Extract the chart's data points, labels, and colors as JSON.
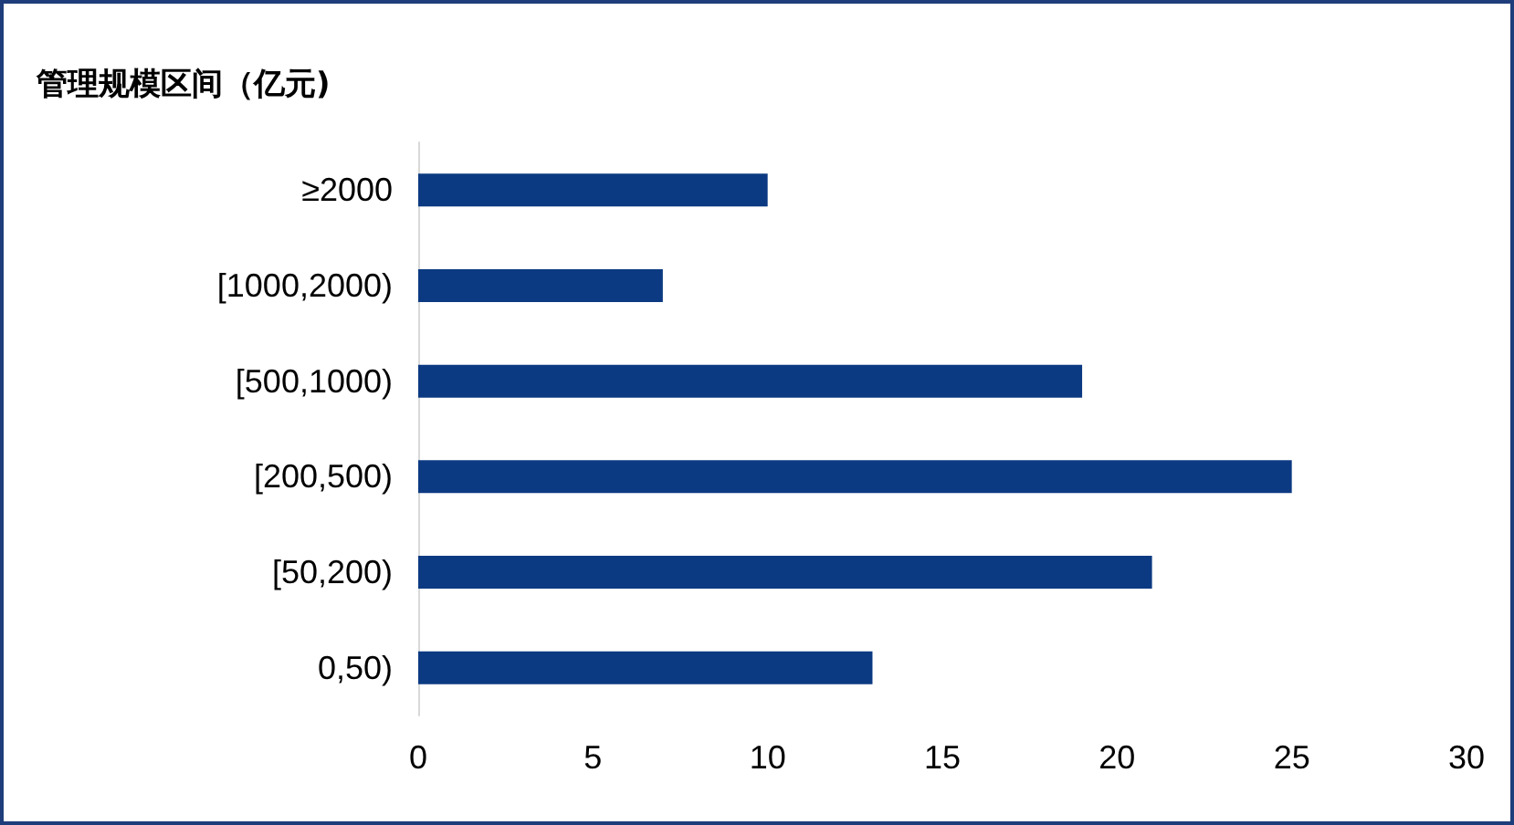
{
  "chart_data": {
    "type": "bar",
    "orientation": "horizontal",
    "ylabel": "管理规模区间（亿元)",
    "categories": [
      "≥2000",
      "[1000,2000)",
      "[500,1000)",
      "[200,500)",
      "[50,200)",
      "0,50)"
    ],
    "values": [
      10,
      7,
      19,
      25,
      21,
      13
    ],
    "color": "#0c3a82",
    "xlim": [
      0,
      30
    ],
    "xticks": [
      0,
      5,
      10,
      15,
      20,
      25,
      30
    ],
    "grid": false
  }
}
